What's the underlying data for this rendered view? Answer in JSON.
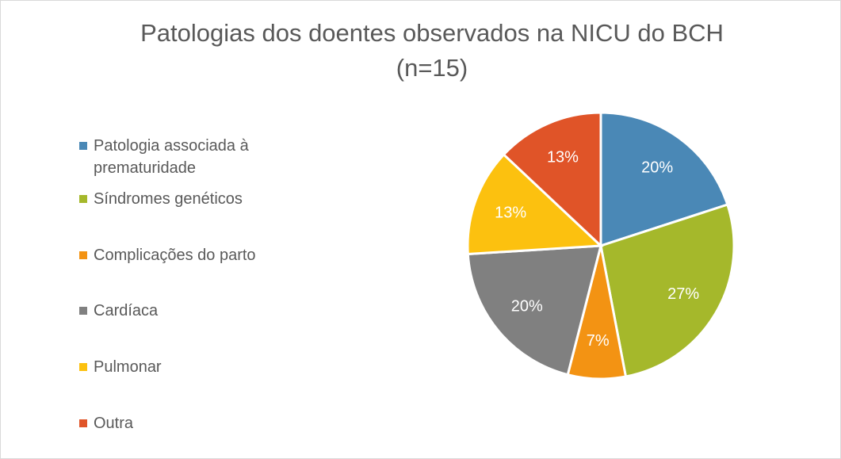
{
  "chart_data": {
    "type": "pie",
    "title": [
      "Patologias dos doentes observados na NICU do BCH",
      "(n=15)"
    ],
    "categories": [
      "Patologia associada à prematuridade",
      "Síndromes genéticos",
      "Complicações do parto",
      "Cardíaca",
      "Pulmonar",
      "Outra"
    ],
    "values": [
      20,
      27,
      7,
      20,
      13,
      13
    ],
    "value_labels": [
      "20%",
      "27%",
      "7%",
      "20%",
      "13%",
      "13%"
    ],
    "colors": [
      "#4a88b6",
      "#a5b82b",
      "#f39313",
      "#808080",
      "#fcc10f",
      "#e05428"
    ],
    "legend": "left"
  }
}
